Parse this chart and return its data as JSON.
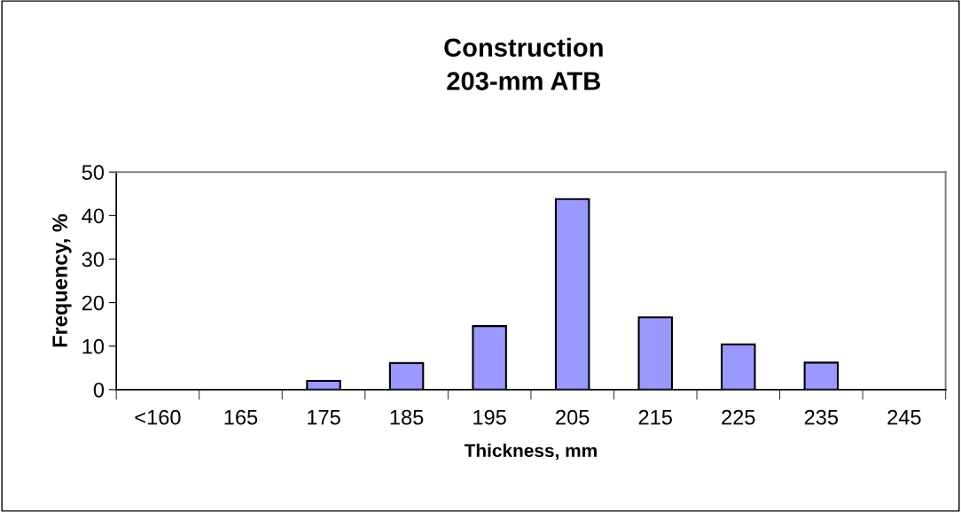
{
  "chart_data": {
    "type": "bar",
    "title": "Construction\n203-mm ATB",
    "xlabel": "Thickness, mm",
    "ylabel": "Frequency, %",
    "categories": [
      "<160",
      "165",
      "175",
      "185",
      "195",
      "205",
      "215",
      "225",
      "235",
      "245"
    ],
    "values": [
      0,
      0,
      2.0,
      6.1,
      14.6,
      43.8,
      16.6,
      10.4,
      6.2,
      0
    ],
    "color": "#9999ff",
    "ylim": [
      0,
      50
    ],
    "yticks": [
      0,
      10,
      20,
      30,
      40,
      50
    ],
    "grid": false,
    "legend": false
  }
}
